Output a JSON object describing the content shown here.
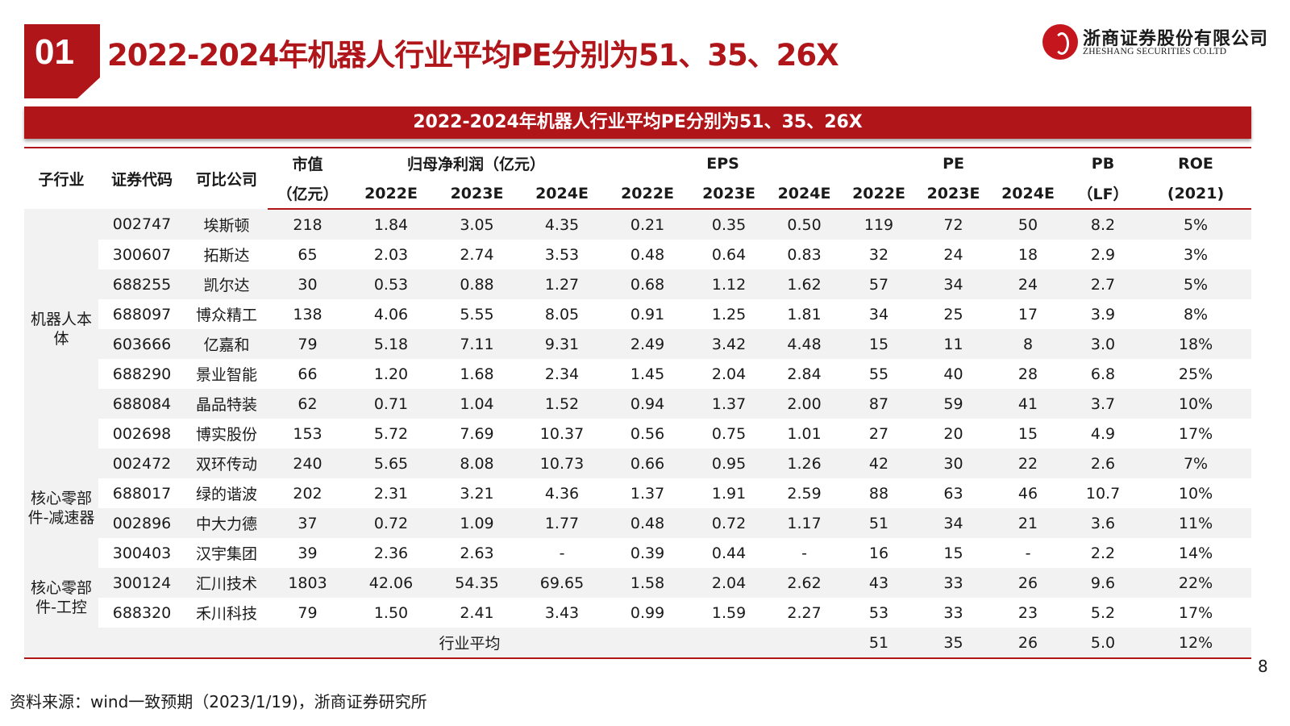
{
  "header": {
    "section_number": "01",
    "title": "2022-2024年机器人行业平均PE分别为51、35、26X",
    "logo_cn": "浙商证券股份有限公司",
    "logo_en": "ZHESHANG SECURITIES CO.LTD"
  },
  "banner": "2022-2024年机器人行业平均PE分别为51、35、26X",
  "table": {
    "head_row1": {
      "sector": "子行业",
      "code": "证券代码",
      "company": "可比公司",
      "mktcap": "市值",
      "profit": "归母净利润（亿元）",
      "eps": "EPS",
      "pe": "PE",
      "pb": "PB",
      "roe": "ROE"
    },
    "head_row2": {
      "mktcap": "（亿元）",
      "y1": "2022E",
      "y2": "2023E",
      "y3": "2024E",
      "y4": "2022E",
      "y5": "2023E",
      "y6": "2024E",
      "y7": "2022E",
      "y8": "2023E",
      "y9": "2024E",
      "pb": "（LF）",
      "roe": "(2021)"
    },
    "sectors": [
      "机器人本体",
      "核心零部件-减速器",
      "核心零部件-工控"
    ],
    "rows": [
      [
        "002747",
        "埃斯顿",
        "218",
        "1.84",
        "3.05",
        "4.35",
        "0.21",
        "0.35",
        "0.50",
        "119",
        "72",
        "50",
        "8.2",
        "5%"
      ],
      [
        "300607",
        "拓斯达",
        "65",
        "2.03",
        "2.74",
        "3.53",
        "0.48",
        "0.64",
        "0.83",
        "32",
        "24",
        "18",
        "2.9",
        "3%"
      ],
      [
        "688255",
        "凯尔达",
        "30",
        "0.53",
        "0.88",
        "1.27",
        "0.68",
        "1.12",
        "1.62",
        "57",
        "34",
        "24",
        "2.7",
        "5%"
      ],
      [
        "688097",
        "博众精工",
        "138",
        "4.06",
        "5.55",
        "8.05",
        "0.91",
        "1.25",
        "1.81",
        "34",
        "25",
        "17",
        "3.9",
        "8%"
      ],
      [
        "603666",
        "亿嘉和",
        "79",
        "5.18",
        "7.11",
        "9.31",
        "2.49",
        "3.42",
        "4.48",
        "15",
        "11",
        "8",
        "3.0",
        "18%"
      ],
      [
        "688290",
        "景业智能",
        "66",
        "1.20",
        "1.68",
        "2.34",
        "1.45",
        "2.04",
        "2.84",
        "55",
        "40",
        "28",
        "6.8",
        "25%"
      ],
      [
        "688084",
        "晶品特装",
        "62",
        "0.71",
        "1.04",
        "1.52",
        "0.94",
        "1.37",
        "2.00",
        "87",
        "59",
        "41",
        "3.7",
        "10%"
      ],
      [
        "002698",
        "博实股份",
        "153",
        "5.72",
        "7.69",
        "10.37",
        "0.56",
        "0.75",
        "1.01",
        "27",
        "20",
        "15",
        "4.9",
        "17%"
      ],
      [
        "002472",
        "双环传动",
        "240",
        "5.65",
        "8.08",
        "10.73",
        "0.66",
        "0.95",
        "1.26",
        "42",
        "30",
        "22",
        "2.6",
        "7%"
      ],
      [
        "688017",
        "绿的谐波",
        "202",
        "2.31",
        "3.21",
        "4.36",
        "1.37",
        "1.91",
        "2.59",
        "88",
        "63",
        "46",
        "10.7",
        "10%"
      ],
      [
        "002896",
        "中大力德",
        "37",
        "0.72",
        "1.09",
        "1.77",
        "0.48",
        "0.72",
        "1.17",
        "51",
        "34",
        "21",
        "3.6",
        "11%"
      ],
      [
        "300403",
        "汉宇集团",
        "39",
        "2.36",
        "2.63",
        "-",
        "0.39",
        "0.44",
        "-",
        "16",
        "15",
        "-",
        "2.2",
        "14%"
      ],
      [
        "300124",
        "汇川技术",
        "1803",
        "42.06",
        "54.35",
        "69.65",
        "1.58",
        "2.04",
        "2.62",
        "43",
        "33",
        "26",
        "9.6",
        "22%"
      ],
      [
        "688320",
        "禾川科技",
        "79",
        "1.50",
        "2.41",
        "3.43",
        "0.99",
        "1.59",
        "2.27",
        "53",
        "33",
        "23",
        "5.2",
        "17%"
      ]
    ],
    "average": {
      "label": "行业平均",
      "pe2022": "51",
      "pe2023": "35",
      "pe2024": "26",
      "pb": "5.0",
      "roe": "12%"
    }
  },
  "footer": {
    "page_number": "8",
    "source": "资料来源：wind一致预期（2023/1/19)，浙商证券研究所"
  }
}
